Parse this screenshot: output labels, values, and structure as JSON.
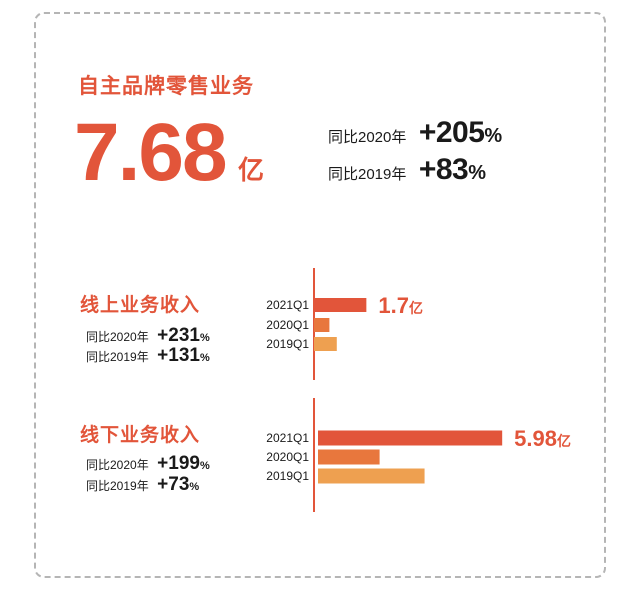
{
  "main": {
    "title": "自主品牌零售业务",
    "value": "7.68",
    "unit": "亿",
    "yoy": [
      {
        "label": "同比2020年",
        "value": "+205",
        "pct": "%"
      },
      {
        "label": "同比2019年",
        "value": "+83",
        "pct": "%"
      }
    ]
  },
  "online": {
    "title": "线上业务收入",
    "yoy": [
      {
        "label": "同比2020年",
        "value": "+231",
        "pct": "%"
      },
      {
        "label": "同比2019年",
        "value": "+131",
        "pct": "%"
      }
    ]
  },
  "offline": {
    "title": "线下业务收入",
    "yoy": [
      {
        "label": "同比2020年",
        "value": "+199",
        "pct": "%"
      },
      {
        "label": "同比2019年",
        "value": "+73",
        "pct": "%"
      }
    ]
  },
  "colors": {
    "accent": "#e2553a",
    "bar_2021": "#e2553a",
    "bar_2020": "#e8773d",
    "bar_2019": "#eea050",
    "axis": "#e2553a"
  },
  "chart_data": [
    {
      "type": "bar",
      "orientation": "horizontal",
      "title": "线上业务收入",
      "categories": [
        "2021Q1",
        "2020Q1",
        "2019Q1"
      ],
      "values": [
        1.7,
        0.5,
        0.74
      ],
      "unit": "亿",
      "data_labels": [
        {
          "category": "2021Q1",
          "value": "1.7",
          "unit": "亿"
        }
      ],
      "xlim": [
        0,
        6.5
      ]
    },
    {
      "type": "bar",
      "orientation": "horizontal",
      "title": "线下业务收入",
      "categories": [
        "2021Q1",
        "2020Q1",
        "2019Q1"
      ],
      "values": [
        5.98,
        2.0,
        3.46
      ],
      "unit": "亿",
      "data_labels": [
        {
          "category": "2021Q1",
          "value": "5.98",
          "unit": "亿"
        }
      ],
      "xlim": [
        0,
        6.5
      ]
    }
  ]
}
